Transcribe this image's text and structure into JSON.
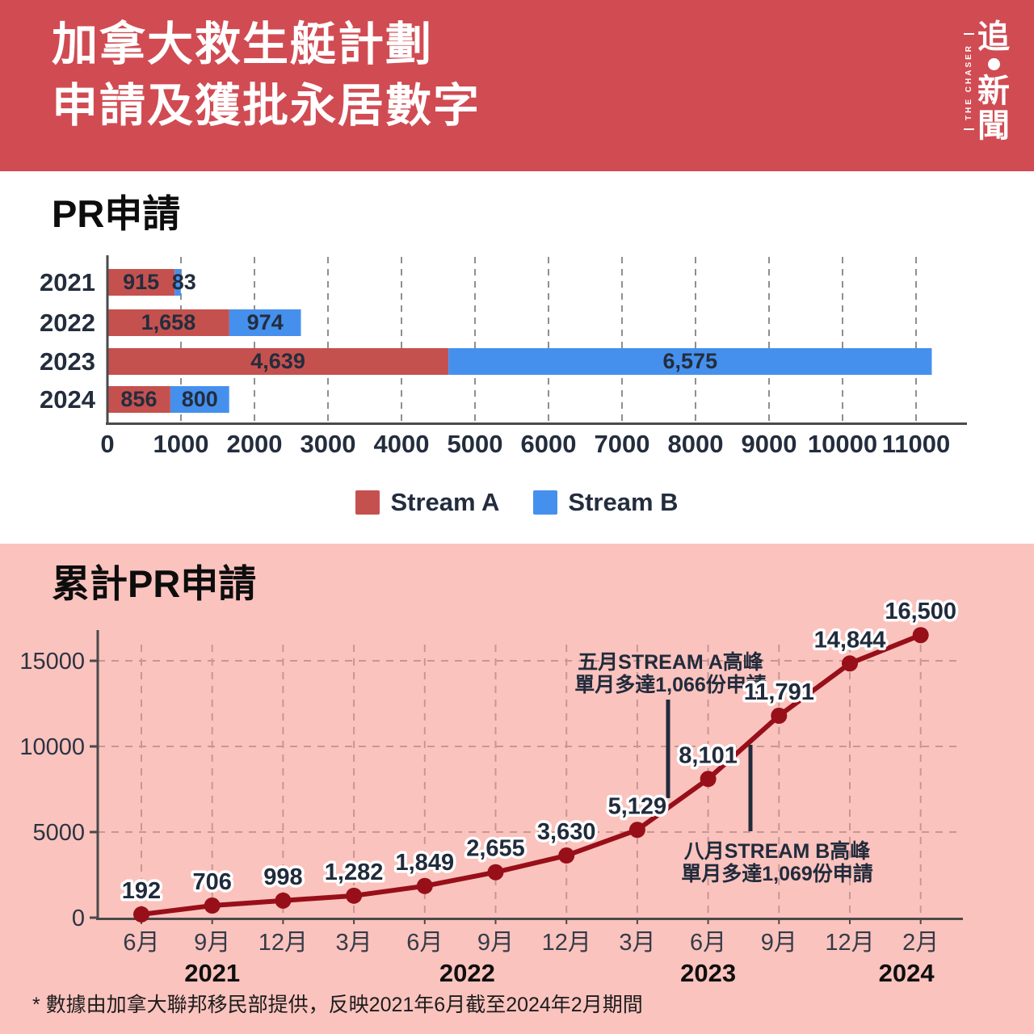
{
  "header": {
    "title_line1": "加拿大救生艇計劃",
    "title_line2": "申請及獲批永居數字",
    "logo": {
      "vertical_chars": [
        "追",
        "新",
        "聞"
      ],
      "strip_text": "THE CHASER"
    }
  },
  "colors": {
    "header_bg": "#d14b53",
    "stream_a": "#c5514f",
    "stream_b": "#4590ed",
    "line": "#970f19",
    "pink_bg": "#fbc3be",
    "text_dark": "#232d3d"
  },
  "footnote": "* 數據由加拿大聯邦移民部提供，反映2021年6月截至2024年2月期間",
  "chart_data": [
    {
      "type": "bar",
      "title": "PR申請",
      "orientation": "horizontal",
      "stacked": true,
      "categories": [
        "2021",
        "2022",
        "2023",
        "2024"
      ],
      "series": [
        {
          "name": "Stream A",
          "color": "#c5514f",
          "values": [
            915,
            1658,
            4639,
            856
          ],
          "labels": [
            "915",
            "1,658",
            "4,639",
            "856"
          ]
        },
        {
          "name": "Stream B",
          "color": "#4590ed",
          "values": [
            83,
            974,
            6575,
            800
          ],
          "labels": [
            "83",
            "974",
            "6,575",
            "800"
          ]
        }
      ],
      "xlim": [
        0,
        11000
      ],
      "x_ticks": [
        0,
        1000,
        2000,
        3000,
        4000,
        5000,
        6000,
        7000,
        8000,
        9000,
        10000,
        11000
      ],
      "grid": "dashed-vertical",
      "legend_position": "bottom"
    },
    {
      "type": "line",
      "title": "累計PR申請",
      "x": [
        "6月",
        "9月",
        "12月",
        "3月",
        "6月",
        "9月",
        "12月",
        "3月",
        "6月",
        "9月",
        "12月",
        "2月"
      ],
      "values": [
        192,
        706,
        998,
        1282,
        1849,
        2655,
        3630,
        5129,
        8101,
        11791,
        14844,
        16500
      ],
      "point_labels": [
        "192",
        "706",
        "998",
        "1,282",
        "1,849",
        "2,655",
        "3,630",
        "5,129",
        "8,101",
        "11,791",
        "14,844",
        "16,500"
      ],
      "year_labels": [
        {
          "label": "2021",
          "x_index": 1
        },
        {
          "label": "2022",
          "x_index": 4.6
        },
        {
          "label": "2023",
          "x_index": 8
        },
        {
          "label": "2024",
          "x_index": 10.8
        }
      ],
      "y_ticks": [
        0,
        5000,
        10000,
        15000
      ],
      "ylim": [
        0,
        17000
      ],
      "grid": "dashed-both",
      "line_color": "#970f19",
      "annotations": [
        {
          "lines": [
            "五月STREAM A高峰",
            "單月多達1,066份申請"
          ],
          "anchor_x_index": 7.45
        },
        {
          "lines": [
            "八月STREAM B高峰",
            "單月多達1,069份申請"
          ],
          "anchor_x_index": 8.6
        }
      ]
    }
  ]
}
